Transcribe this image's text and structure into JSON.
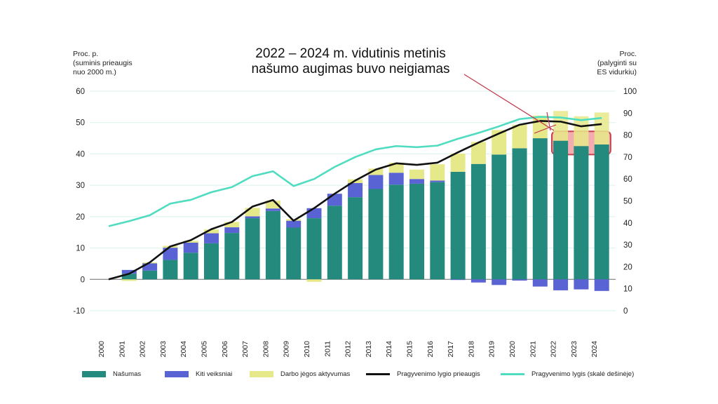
{
  "annotation": {
    "line1": "2022 – 2024 m. vidutinis metinis",
    "line2": "našumo augimas buvo neigiamas"
  },
  "left_axis_title": [
    "Proc. p.",
    "(suminis prieaugis",
    "nuo 2000 m.)"
  ],
  "right_axis_title": [
    "Proc.",
    "(palyginti su",
    "ES vidurkiu)"
  ],
  "legend": {
    "nasumas": "Našumas",
    "kiti": "Kiti veiksniai",
    "darbo": "Darbo jėgos aktyvumas",
    "prieaugis": "Pragyvenimo lygio prieaugis",
    "lygis": "Pragyvenimo lygis (skalė dešinėje)"
  },
  "colors": {
    "nasumas": "#248a7d",
    "kiti": "#5a63d4",
    "darbo": "#e6e98a",
    "prieaugis": "#111111",
    "lygis": "#4fdcc0",
    "highlight_fill": "#f4a3a6",
    "highlight_stroke": "#c9404f",
    "annotation_line": "#c0364b"
  },
  "chart_data": {
    "type": "bar",
    "stacked": true,
    "categories": [
      "2000",
      "2001",
      "2002",
      "2003",
      "2004",
      "2005",
      "2006",
      "2007",
      "2008",
      "2009",
      "2010",
      "2011",
      "2012",
      "2013",
      "2014",
      "2015",
      "2016",
      "2017",
      "2018",
      "2019",
      "2020",
      "2021",
      "2022",
      "2023",
      "2024"
    ],
    "left_ylim": [
      -10,
      60
    ],
    "left_ticks": [
      -10,
      0,
      10,
      20,
      30,
      40,
      50,
      60
    ],
    "right_ylim": [
      0,
      100
    ],
    "right_ticks": [
      0,
      10,
      20,
      30,
      40,
      50,
      60,
      70,
      80,
      90,
      100
    ],
    "series": [
      {
        "name": "Našumas",
        "key": "nasumas",
        "values": [
          0,
          1.8,
          2.8,
          6.2,
          8.5,
          11.5,
          14.8,
          19.5,
          21.8,
          16.5,
          19.5,
          23.5,
          26.2,
          28.8,
          30.2,
          30.5,
          31.0,
          34.3,
          36.8,
          39.8,
          41.8,
          45.0,
          44.2,
          42.5,
          43.0
        ]
      },
      {
        "name": "Kiti veiksniai",
        "key": "kiti",
        "values": [
          0,
          1.2,
          2.3,
          3.9,
          3.2,
          3.2,
          1.8,
          0.6,
          0.8,
          2.2,
          3.2,
          3.8,
          4.5,
          4.5,
          3.8,
          1.5,
          0.5,
          -0.2,
          -1.0,
          -1.8,
          -0.4,
          -2.3,
          -3.5,
          -3.2,
          -3.7
        ]
      },
      {
        "name": "Darbo jėgos aktyvumas",
        "key": "darbo",
        "values": [
          0,
          -0.5,
          0.3,
          0.6,
          0.6,
          1.2,
          1.7,
          2.7,
          2.5,
          0.5,
          -0.8,
          0.0,
          1.2,
          2.0,
          3.2,
          3.0,
          5.2,
          5.8,
          7.0,
          7.8,
          7.5,
          7.2,
          9.5,
          9.5,
          10.2
        ]
      }
    ],
    "lines": [
      {
        "name": "Pragyvenimo lygio prieaugis",
        "key": "prieaugis",
        "axis": "left",
        "values": [
          0,
          1.8,
          5.4,
          10.5,
          12.5,
          16.0,
          18.3,
          23.2,
          25.3,
          18.7,
          22.7,
          27.3,
          31.5,
          35.0,
          37.0,
          36.5,
          37.2,
          40.5,
          43.6,
          46.5,
          49.3,
          50.5,
          50.3,
          48.8,
          49.5
        ]
      },
      {
        "name": "Pragyvenimo lygis (skalė dešinėje)",
        "key": "lygis",
        "axis": "right",
        "values": [
          38.5,
          40.8,
          43.5,
          48.8,
          50.5,
          54.0,
          56.3,
          61.3,
          63.5,
          56.8,
          60.0,
          65.5,
          70.0,
          73.5,
          75.0,
          74.5,
          75.2,
          78.3,
          81.0,
          84.0,
          87.3,
          88.3,
          88.0,
          86.8,
          87.8
        ]
      }
    ],
    "highlight_years": [
      "2022",
      "2023",
      "2024"
    ],
    "grid": true
  }
}
